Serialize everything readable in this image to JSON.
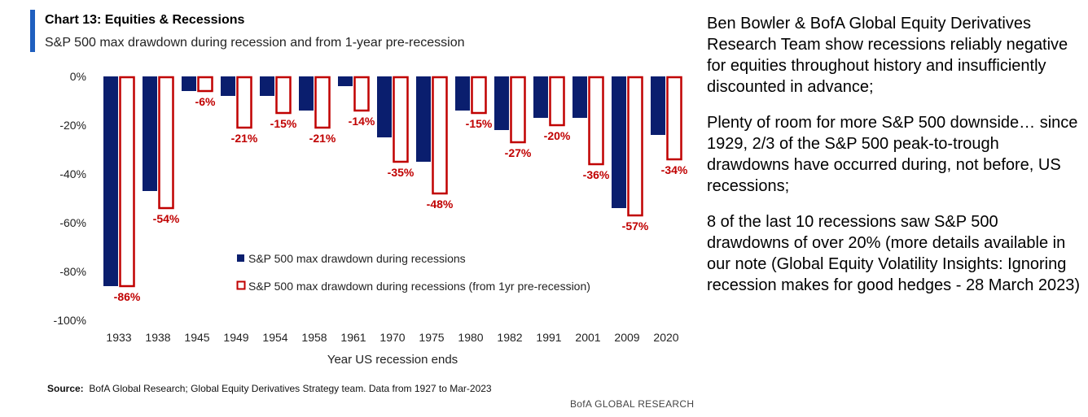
{
  "header": {
    "title": "Chart 13: Equities & Recessions",
    "subtitle": "S&P 500 max drawdown during recession and from 1-year pre-recession"
  },
  "colors": {
    "accent": "#1f5fbf",
    "navy": "#0a1e6e",
    "red": "#c00000"
  },
  "chart_data": {
    "type": "bar",
    "categories": [
      "1933",
      "1938",
      "1945",
      "1949",
      "1954",
      "1958",
      "1961",
      "1970",
      "1975",
      "1980",
      "1982",
      "1991",
      "2001",
      "2009",
      "2020"
    ],
    "series": [
      {
        "name": "S&P 500 max drawdown during recessions",
        "values": [
          -86,
          -47,
          -6,
          -8,
          -8,
          -14,
          -4,
          -25,
          -35,
          -14,
          -22,
          -17,
          -17,
          -54,
          -24
        ]
      },
      {
        "name": "S&P 500 max drawdown during recessions (from 1yr pre-recession)",
        "values": [
          -86,
          -54,
          -6,
          -21,
          -15,
          -21,
          -14,
          -35,
          -48,
          -15,
          -27,
          -20,
          -36,
          -57,
          -34
        ]
      }
    ],
    "data_labels": [
      "-86%",
      "-54%",
      "-6%",
      "-21%",
      "-15%",
      "-21%",
      "-14%",
      "-35%",
      "-48%",
      "-15%",
      "-27%",
      "-20%",
      "-36%",
      "-57%",
      "-34%"
    ],
    "y_ticks": [
      0,
      -20,
      -40,
      -60,
      -80,
      -100
    ],
    "y_tick_labels": [
      "0%",
      "-20%",
      "-40%",
      "-60%",
      "-80%",
      "-100%"
    ],
    "ylim": [
      -100,
      0
    ],
    "xlabel": "Year US recession ends",
    "ylabel": "",
    "grid": false,
    "legend_position": "center"
  },
  "footer": {
    "source_label": "Source:",
    "source_text": "BofA Global Research; Global Equity Derivatives Strategy team. Data from 1927 to Mar-2023",
    "brand": "BofA GLOBAL RESEARCH"
  },
  "commentary": [
    "Ben Bowler & BofA Global Equity Derivatives Research Team show recessions reliably negative for equities throughout history and insufficiently discounted in advance;",
    "Plenty of room for more S&P 500 downside… since 1929, 2/3 of the S&P 500 peak-to-trough drawdowns have occurred during, not before, US recessions;",
    "8 of the last 10 recessions saw S&P 500 drawdowns of over 20% (more details available in our note (Global Equity Volatility Insights: Ignoring recession makes for good hedges - 28 March 2023)"
  ]
}
